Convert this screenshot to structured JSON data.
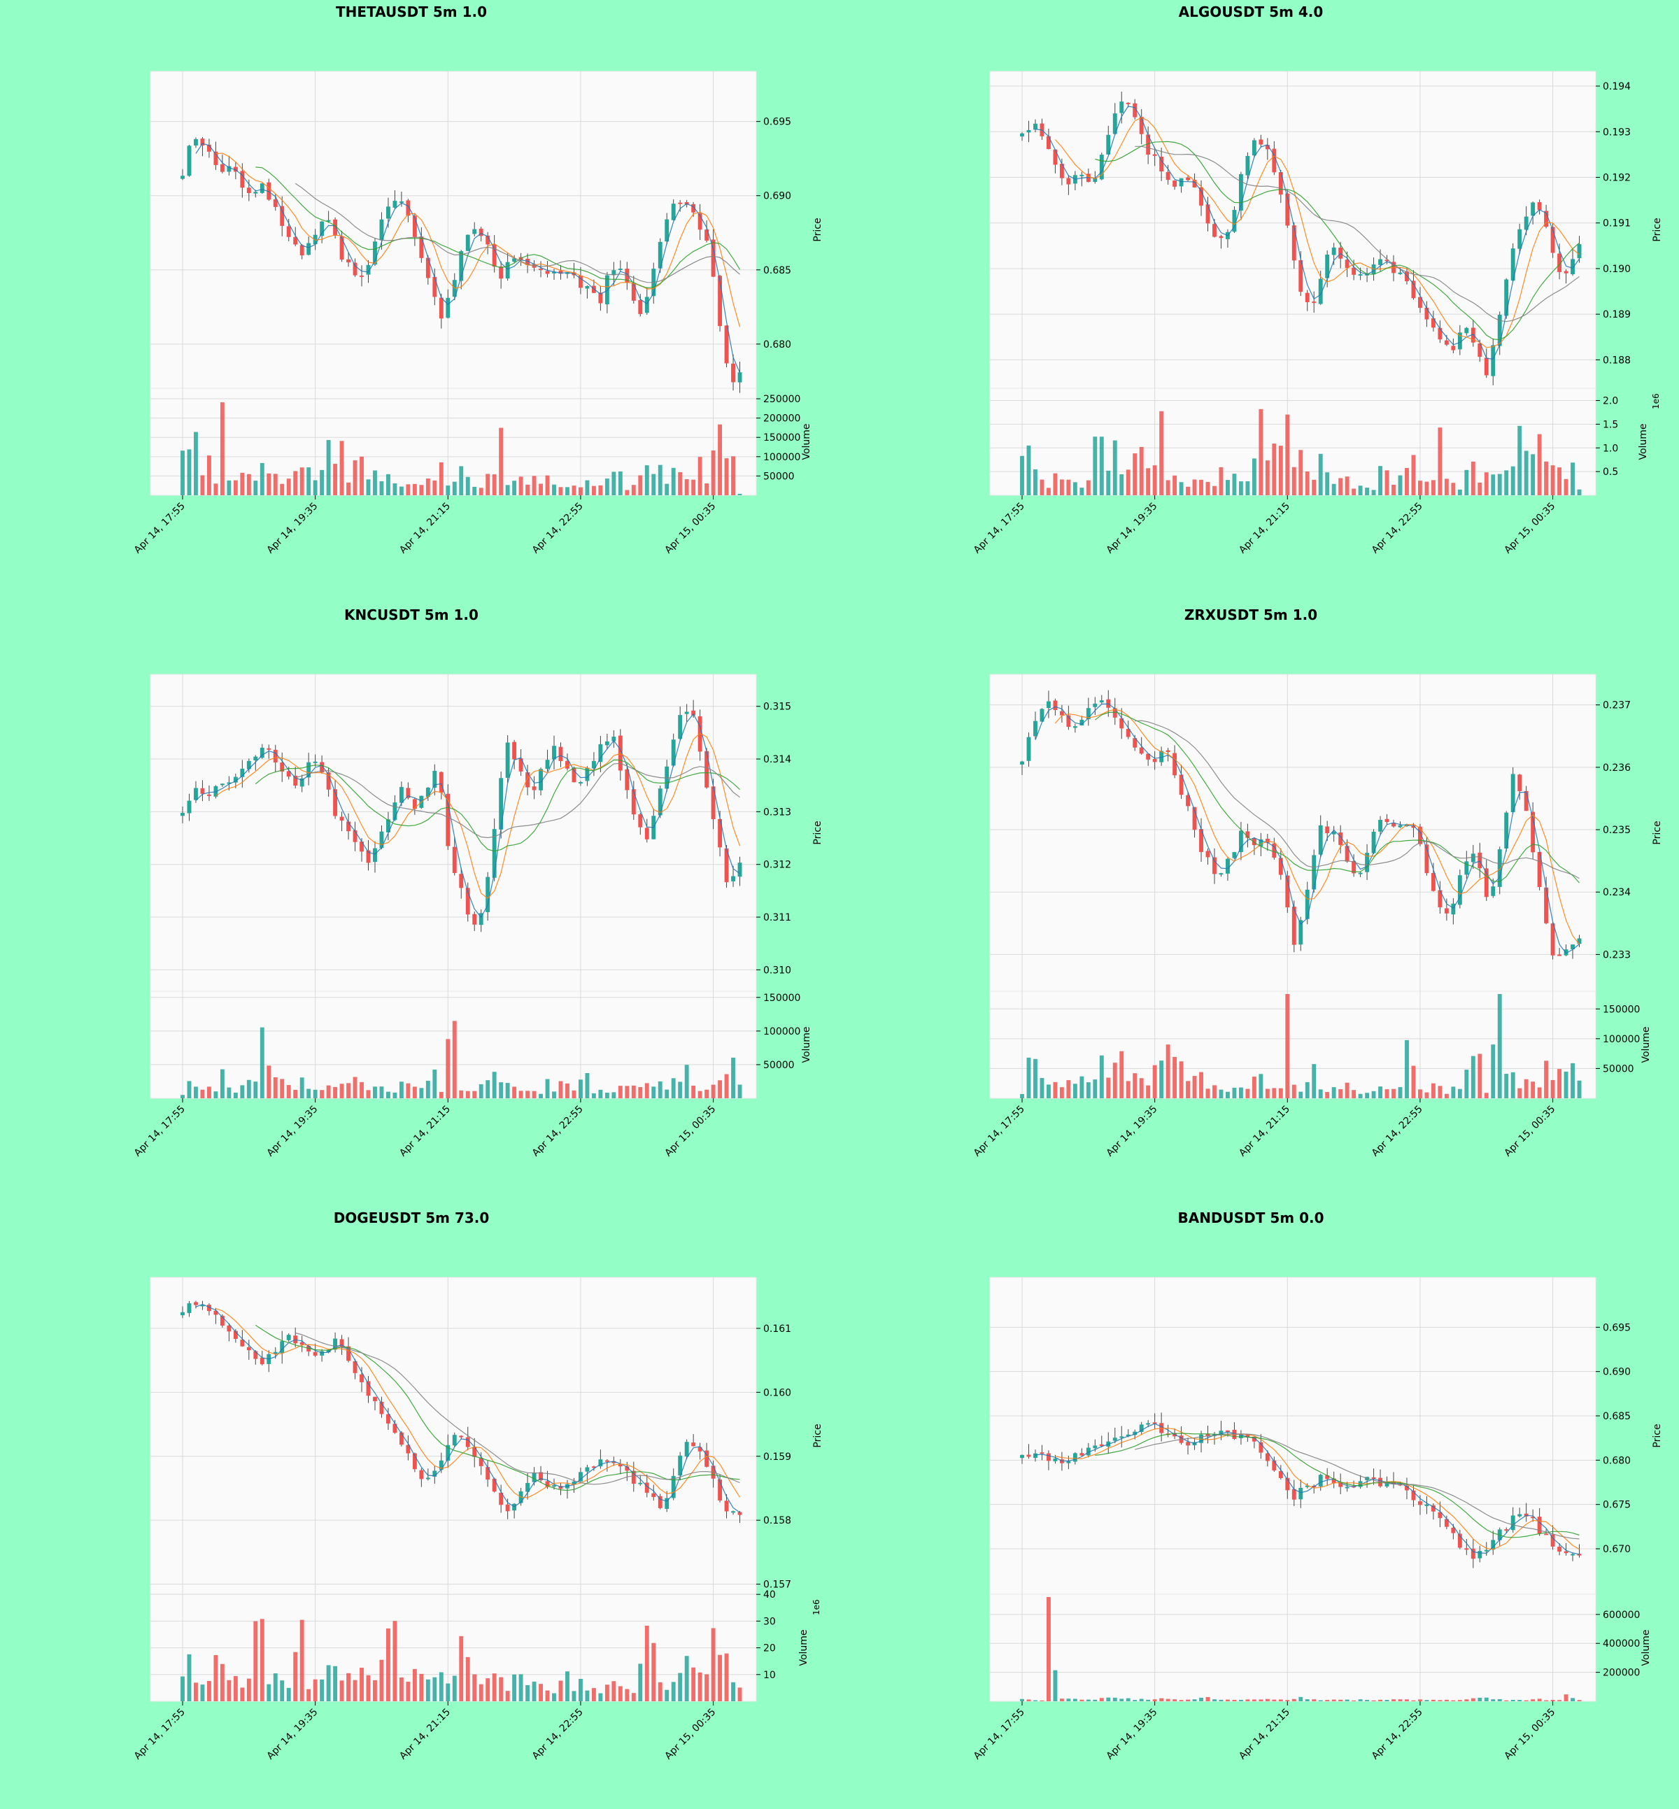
{
  "page": {
    "background": "#93fec5"
  },
  "colors": {
    "panel_bg": "#fafafa",
    "grid": "#d9d9d9",
    "up": "#26a69a",
    "down": "#ef5350",
    "axis_text": "#000000",
    "ma_lines": [
      "#1f77b4",
      "#ff7f0e",
      "#2ca02c",
      "#7f7f7f"
    ]
  },
  "chart_data": [
    {
      "type": "candlestick",
      "title": "THETAUSDT 5m 1.0",
      "x_tick_labels": [
        "Apr 14, 17:55",
        "Apr 14, 19:35",
        "Apr 14, 21:15",
        "Apr 14, 22:55",
        "Apr 15, 00:35"
      ],
      "price": {
        "ylabel": "Price",
        "ylim": [
          0.6774,
          0.698
        ],
        "ticks": [
          "0.695",
          "0.690",
          "0.685",
          "0.680"
        ],
        "tick_values": [
          0.695,
          0.69,
          0.685,
          0.68
        ]
      },
      "volume": {
        "ylabel": "Volume",
        "ylim": [
          0,
          270000
        ],
        "ticks": [
          "250000",
          "200000",
          "150000",
          "100000",
          "50000"
        ],
        "tick_values": [
          250000,
          200000,
          150000,
          100000,
          50000
        ],
        "exponent": ""
      },
      "price_path": [
        0.6915,
        0.694,
        0.6935,
        0.6925,
        0.6915,
        0.6925,
        0.6905,
        0.69,
        0.691,
        0.6895,
        0.688,
        0.687,
        0.686,
        0.687,
        0.6885,
        0.688,
        0.686,
        0.685,
        0.6845,
        0.686,
        0.6885,
        0.6895,
        0.6895,
        0.688,
        0.686,
        0.684,
        0.682,
        0.6835,
        0.6865,
        0.688,
        0.6875,
        0.686,
        0.6845,
        0.686,
        0.6855,
        0.685,
        0.685,
        0.6845,
        0.685,
        0.685,
        0.684,
        0.684,
        0.683,
        0.685,
        0.685,
        0.6835,
        0.682,
        0.684,
        0.687,
        0.689,
        0.6895,
        0.689,
        0.688,
        0.686,
        0.681,
        0.6775,
        0.678
      ],
      "volume_path": [
        175000,
        105000,
        235000,
        85000,
        165000,
        45000,
        185000,
        55000,
        60000,
        75000,
        50000,
        55000,
        60000,
        50000,
        100000,
        30000,
        75000,
        45000,
        120000,
        55000,
        60000,
        80000,
        110000,
        65000,
        115000,
        60000,
        155000,
        140000,
        30000,
        45000,
        35000,
        40000,
        30000,
        25000,
        20000,
        35000,
        45000,
        60000,
        50000,
        65000,
        45000,
        30000,
        110000,
        45000,
        20000,
        30000,
        40000,
        45000,
        230000,
        40000,
        30000,
        55000,
        45000,
        50000,
        30000,
        40000,
        25000,
        20000,
        15000,
        30000,
        25000,
        30000,
        20000,
        25000,
        30000,
        60000,
        55000,
        20000,
        25000,
        75000,
        95000,
        60000,
        75000,
        45000,
        60000,
        50000,
        40000,
        55000,
        80000,
        45000,
        85000,
        260000,
        70000,
        170000,
        5000
      ]
    },
    {
      "type": "candlestick",
      "title": "ALGOUSDT 5m 4.0",
      "x_tick_labels": [
        "Apr 14, 17:55",
        "Apr 14, 19:35",
        "Apr 14, 21:15",
        "Apr 14, 22:55",
        "Apr 15, 00:35"
      ],
      "price": {
        "ylabel": "Price",
        "ylim": [
          0.1875,
          0.1942
        ],
        "ticks": [
          "0.194",
          "0.193",
          "0.192",
          "0.191",
          "0.190",
          "0.189",
          "0.188"
        ],
        "tick_values": [
          0.194,
          0.193,
          0.192,
          0.191,
          0.19,
          0.189,
          0.188
        ]
      },
      "volume": {
        "ylabel": "Volume",
        "ylim": [
          0,
          2.2
        ],
        "ticks": [
          "2.0",
          "1.5",
          "1.0",
          "0.5"
        ],
        "tick_values": [
          2.0,
          1.5,
          1.0,
          0.5
        ],
        "exponent": "1e6"
      },
      "price_path": [
        0.193,
        0.1932,
        0.1928,
        0.1922,
        0.1919,
        0.1921,
        0.1918,
        0.1925,
        0.1935,
        0.1938,
        0.193,
        0.1925,
        0.1922,
        0.1918,
        0.192,
        0.1918,
        0.191,
        0.1906,
        0.191,
        0.1922,
        0.1928,
        0.1927,
        0.192,
        0.1908,
        0.1895,
        0.189,
        0.1902,
        0.1905,
        0.19,
        0.1898,
        0.19,
        0.1903,
        0.19,
        0.1898,
        0.1892,
        0.1888,
        0.1885,
        0.1882,
        0.1888,
        0.1883,
        0.1877,
        0.1888,
        0.1902,
        0.191,
        0.1915,
        0.191,
        0.19,
        0.1898,
        0.1906
      ],
      "volume_path": [
        0.65,
        1.15,
        0.75,
        0.5,
        0.2,
        0.9,
        0.4,
        0.35,
        0.4,
        0.2,
        0.55,
        1.25,
        0.5,
        0.95,
        0.5,
        0.3,
        0.85,
        0.75,
        0.5,
        0.4,
        1.4,
        0.5,
        0.5,
        0.45,
        0.25,
        0.45,
        0.2,
        0.25,
        0.25,
        0.85,
        0.25,
        0.45,
        0.45,
        0.25,
        1.65,
        0.5,
        0.95,
        1.7,
        2.25,
        0.45,
        0.85,
        0.35,
        0.3,
        0.7,
        0.25,
        0.2,
        0.3,
        0.3,
        0.2,
        0.3,
        0.2,
        0.2,
        0.9,
        0.15,
        0.45,
        0.25,
        0.95,
        0.45,
        0.2,
        0.3,
        1.25,
        0.2,
        0.2,
        0.1,
        0.7,
        0.45,
        0.5,
        0.55,
        0.6,
        0.95,
        0.7,
        1.4,
        0.65,
        1.1,
        1.05,
        0.55,
        0.7,
        0.7,
        0.4,
        0.5,
        0.2
      ]
    },
    {
      "type": "candlestick",
      "title": "KNCUSDT 5m 1.0",
      "x_tick_labels": [
        "Apr 14, 17:55",
        "Apr 14, 19:35",
        "Apr 14, 21:15",
        "Apr 14, 22:55",
        "Apr 15, 00:35"
      ],
      "price": {
        "ylabel": "Price",
        "ylim": [
          0.3097,
          0.3155
        ],
        "ticks": [
          "0.315",
          "0.314",
          "0.313",
          "0.312",
          "0.311",
          "0.310"
        ],
        "tick_values": [
          0.315,
          0.314,
          0.313,
          0.312,
          0.311,
          0.31
        ]
      },
      "volume": {
        "ylabel": "Volume",
        "ylim": [
          0,
          155000
        ],
        "ticks": [
          "150000",
          "100000",
          "50000"
        ],
        "tick_values": [
          150000,
          100000,
          50000
        ],
        "exponent": ""
      },
      "price_path": [
        0.313,
        0.3134,
        0.3133,
        0.3135,
        0.3136,
        0.3138,
        0.314,
        0.3142,
        0.314,
        0.3136,
        0.3135,
        0.314,
        0.3138,
        0.313,
        0.3128,
        0.3124,
        0.312,
        0.3125,
        0.313,
        0.3135,
        0.313,
        0.3135,
        0.3138,
        0.3122,
        0.3115,
        0.3108,
        0.3113,
        0.313,
        0.3143,
        0.3138,
        0.3133,
        0.3138,
        0.3143,
        0.3138,
        0.3135,
        0.3138,
        0.3143,
        0.3145,
        0.3136,
        0.3128,
        0.3125,
        0.3133,
        0.3142,
        0.315,
        0.3148,
        0.3136,
        0.3125,
        0.3116,
        0.312
      ],
      "volume_path": [
        5000,
        35000,
        25000,
        20000,
        30000,
        15000,
        55000,
        15000,
        10000,
        15000,
        20000,
        10000,
        90000,
        40000,
        20000,
        30000,
        20000,
        15000,
        25000,
        15000,
        10000,
        10000,
        30000,
        10000,
        20000,
        35000,
        25000,
        40000,
        10000,
        15000,
        20000,
        15000,
        10000,
        15000,
        25000,
        15000,
        10000,
        15000,
        55000,
        10000,
        15000,
        155000,
        10000,
        25000,
        5000,
        15000,
        20000,
        65000,
        15000,
        30000,
        15000,
        25000,
        10000,
        20000,
        5000,
        15000,
        25000,
        10000,
        30000,
        10000,
        10000,
        55000,
        15000,
        10000,
        10000,
        5000,
        15000,
        20000,
        15000,
        25000,
        10000,
        25000,
        30000,
        25000,
        20000,
        35000,
        40000,
        40000,
        20000,
        15000,
        15000,
        15000,
        25000,
        30000,
        45000,
        15000
      ]
    },
    {
      "type": "candlestick",
      "title": "ZRXUSDT 5m 1.0",
      "x_tick_labels": [
        "Apr 14, 17:55",
        "Apr 14, 19:35",
        "Apr 14, 21:15",
        "Apr 14, 22:55",
        "Apr 15, 00:35"
      ],
      "price": {
        "ylabel": "Price",
        "ylim": [
          0.2325,
          0.2374
        ],
        "ticks": [
          "0.237",
          "0.236",
          "0.235",
          "0.234",
          "0.233"
        ],
        "tick_values": [
          0.237,
          0.236,
          0.235,
          0.234,
          0.233
        ]
      },
      "volume": {
        "ylabel": "Volume",
        "ylim": [
          0,
          175000
        ],
        "ticks": [
          "150000",
          "100000",
          "50000"
        ],
        "tick_values": [
          150000,
          100000,
          50000
        ],
        "exponent": ""
      },
      "price_path": [
        0.2361,
        0.2368,
        0.237,
        0.2368,
        0.2366,
        0.2369,
        0.2371,
        0.2369,
        0.2365,
        0.2362,
        0.236,
        0.2364,
        0.2358,
        0.2352,
        0.2346,
        0.2343,
        0.2345,
        0.235,
        0.2348,
        0.2348,
        0.2342,
        0.2332,
        0.234,
        0.235,
        0.235,
        0.2345,
        0.2342,
        0.235,
        0.2352,
        0.235,
        0.2352,
        0.2345,
        0.2338,
        0.2336,
        0.2344,
        0.2346,
        0.2338,
        0.2348,
        0.236,
        0.2352,
        0.234,
        0.2329,
        0.2331,
        0.2333
      ],
      "volume_path": [
        10000,
        45000,
        100000,
        55000,
        45000,
        20000,
        15000,
        25000,
        20000,
        40000,
        30000,
        15000,
        45000,
        70000,
        15000,
        55000,
        85000,
        20000,
        35000,
        25000,
        25000,
        50000,
        50000,
        95000,
        80000,
        55000,
        40000,
        25000,
        40000,
        20000,
        15000,
        20000,
        10000,
        15000,
        20000,
        15000,
        10000,
        75000,
        20000,
        10000,
        35000,
        15000,
        150000,
        35000,
        10000,
        25000,
        60000,
        15000,
        15000,
        20000,
        15000,
        40000,
        15000,
        10000,
        15000,
        10000,
        30000,
        20000,
        15000,
        10000,
        20000,
        90000,
        30000,
        25000,
        15000,
        20000,
        15000,
        5000,
        20000,
        15000,
        30000,
        55000,
        85000,
        10000,
        5000,
        170000,
        70000,
        65000,
        10000,
        30000,
        20000,
        35000,
        15000,
        55000,
        30000,
        40000,
        70000,
        45000,
        25000
      ]
    },
    {
      "type": "candlestick",
      "title": "DOGEUSDT 5m 73.0",
      "x_tick_labels": [
        "Apr 14, 17:55",
        "Apr 14, 19:35",
        "Apr 14, 21:15",
        "Apr 14, 22:55",
        "Apr 15, 00:35"
      ],
      "price": {
        "ylabel": "Price",
        "ylim": [
          0.15693,
          0.16171
        ],
        "ticks": [
          "0.161",
          "0.160",
          "0.159",
          "0.158",
          "0.157"
        ],
        "tick_values": [
          0.161,
          0.16,
          0.159,
          0.158,
          0.157
        ]
      },
      "volume": {
        "ylabel": "Volume",
        "ylim": [
          0,
          39000000
        ],
        "ticks": [
          "40",
          "30",
          "20",
          "10"
        ],
        "tick_values": [
          40000000,
          30000000,
          20000000,
          10000000
        ],
        "exponent": "1e6"
      },
      "price_path": [
        0.16125,
        0.1614,
        0.16125,
        0.1611,
        0.1609,
        0.16065,
        0.16045,
        0.1606,
        0.1609,
        0.1608,
        0.1606,
        0.1607,
        0.1608,
        0.1604,
        0.1601,
        0.1598,
        0.1595,
        0.1591,
        0.1588,
        0.1586,
        0.159,
        0.1594,
        0.1592,
        0.1588,
        0.1584,
        0.1581,
        0.1584,
        0.1587,
        0.1586,
        0.1585,
        0.1586,
        0.1588,
        0.1589,
        0.159,
        0.1588,
        0.1586,
        0.1584,
        0.1581,
        0.1588,
        0.1592,
        0.1591,
        0.1586,
        0.1581,
        0.15805
      ],
      "volume_path": [
        7000000,
        15000000,
        9000000,
        10000000,
        16000000,
        9000000,
        14000000,
        11000000,
        6000000,
        8000000,
        37000000,
        25000000,
        6000000,
        8000000,
        7000000,
        10000000,
        33000000,
        6000000,
        8000000,
        10000000,
        12000000,
        9000000,
        16000000,
        10000000,
        14000000,
        15000000,
        11000000,
        16000000,
        27000000,
        23000000,
        9000000,
        11000000,
        14000000,
        7000000,
        12000000,
        10000000,
        9000000,
        12000000,
        38000000,
        10000000,
        10000000,
        7000000,
        15000000,
        8000000,
        6000000,
        8000000,
        7000000,
        8000000,
        7000000,
        6000000,
        2000000,
        3000000,
        10000000,
        7000000,
        6000000,
        6000000,
        5000000,
        5000000,
        5000000,
        6000000,
        7000000,
        6000000,
        5000000,
        25000000,
        22000000,
        8000000,
        7000000,
        12000000,
        11000000,
        12000000,
        13000000,
        8000000,
        12000000,
        35000000,
        20000000,
        6000000,
        5000000
      ]
    },
    {
      "type": "candlestick",
      "title": "BANDUSDT 5m 0.0",
      "x_tick_labels": [
        "Apr 14, 17:55",
        "Apr 14, 19:35",
        "Apr 14, 21:15",
        "Apr 14, 22:55",
        "Apr 15, 00:35"
      ],
      "price": {
        "ylabel": "Price",
        "ylim": [
          0.6655,
          0.7
        ],
        "ticks": [
          "0.695",
          "0.690",
          "0.685",
          "0.680",
          "0.675",
          "0.670"
        ],
        "tick_values": [
          0.695,
          0.69,
          0.685,
          0.68,
          0.675,
          0.67
        ]
      },
      "volume": {
        "ylabel": "Volume",
        "ylim": [
          0,
          720000
        ],
        "ticks": [
          "600000",
          "400000",
          "200000"
        ],
        "tick_values": [
          600000,
          400000,
          200000
        ],
        "exponent": ""
      },
      "price_path": [
        0.6805,
        0.6808,
        0.68,
        0.6795,
        0.6805,
        0.681,
        0.682,
        0.6825,
        0.6828,
        0.6835,
        0.684,
        0.683,
        0.6822,
        0.6818,
        0.6825,
        0.6835,
        0.683,
        0.6825,
        0.682,
        0.68,
        0.678,
        0.676,
        0.677,
        0.678,
        0.6775,
        0.6768,
        0.6775,
        0.6778,
        0.6772,
        0.677,
        0.676,
        0.675,
        0.6735,
        0.672,
        0.67,
        0.669,
        0.67,
        0.672,
        0.6735,
        0.674,
        0.672,
        0.67,
        0.669,
        0.6695
      ],
      "volume_path": [
        15000,
        12000,
        10000,
        8000,
        700000,
        40000,
        30000,
        20000,
        15000,
        20000,
        18000,
        15000,
        25000,
        20000,
        15000,
        18000,
        15000,
        12000,
        20000,
        15000,
        18000,
        12000,
        15000,
        10000,
        12000,
        15000,
        18000,
        20000,
        15000,
        12000,
        10000,
        15000,
        18000,
        12000,
        10000,
        15000,
        10000,
        12000,
        8000,
        10000,
        30000,
        25000,
        15000,
        12000,
        10000,
        15000,
        12000,
        10000,
        8000,
        10000,
        12000,
        10000,
        8000,
        10000,
        15000,
        12000,
        10000,
        8000,
        10000,
        12000,
        15000,
        10000,
        8000,
        10000,
        12000,
        15000,
        30000,
        25000,
        15000,
        12000,
        10000,
        12000,
        8000,
        10000,
        12000,
        15000,
        10000,
        12000,
        8000,
        35000,
        20000,
        10000
      ]
    }
  ]
}
